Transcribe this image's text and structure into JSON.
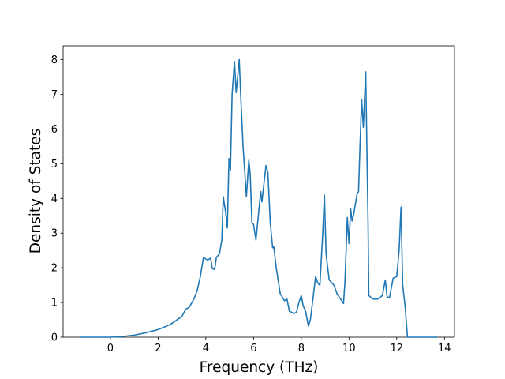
{
  "chart_data": {
    "type": "line",
    "xlabel": "Frequency (THz)",
    "ylabel": "Density of States",
    "color": "#1f77b4",
    "x": [
      -1.25,
      0,
      0.5,
      1.0,
      1.5,
      2.0,
      2.5,
      3.0,
      3.15,
      3.3,
      3.5,
      3.64,
      3.77,
      3.9,
      4.07,
      4.2,
      4.27,
      4.37,
      4.44,
      4.57,
      4.67,
      4.73,
      4.83,
      4.9,
      4.97,
      5.03,
      5.1,
      5.2,
      5.27,
      5.4,
      5.46,
      5.56,
      5.7,
      5.8,
      5.86,
      5.93,
      6.0,
      6.1,
      6.3,
      6.35,
      6.52,
      6.6,
      6.7,
      6.8,
      6.85,
      6.95,
      7.12,
      7.3,
      7.4,
      7.5,
      7.7,
      7.8,
      7.9,
      8.0,
      8.08,
      8.18,
      8.25,
      8.3,
      8.38,
      8.48,
      8.6,
      8.7,
      8.78,
      8.9,
      8.97,
      9.04,
      9.17,
      9.37,
      9.5,
      9.77,
      9.83,
      9.93,
      10.0,
      10.07,
      10.13,
      10.2,
      10.33,
      10.4,
      10.46,
      10.53,
      10.6,
      10.7,
      10.8,
      10.83,
      11.0,
      11.2,
      11.4,
      11.52,
      11.6,
      11.7,
      11.85,
      12.0,
      12.1,
      12.18,
      12.25,
      12.35,
      12.45,
      13.7
    ],
    "values": [
      0,
      0,
      0.02,
      0.06,
      0.13,
      0.22,
      0.36,
      0.6,
      0.8,
      0.86,
      1.1,
      1.35,
      1.75,
      2.3,
      2.22,
      2.28,
      1.98,
      1.95,
      2.3,
      2.4,
      2.8,
      4.05,
      3.6,
      3.15,
      5.15,
      4.8,
      7.0,
      7.95,
      7.05,
      8.0,
      7.0,
      5.5,
      4.05,
      5.1,
      4.7,
      3.3,
      3.25,
      2.8,
      4.2,
      3.9,
      4.95,
      4.75,
      3.3,
      2.58,
      2.6,
      2.0,
      1.25,
      1.05,
      1.1,
      0.75,
      0.68,
      0.72,
      1.0,
      1.2,
      0.9,
      0.75,
      0.5,
      0.32,
      0.5,
      1.05,
      1.75,
      1.55,
      1.5,
      3.0,
      4.1,
      2.4,
      1.65,
      1.5,
      1.25,
      0.97,
      1.6,
      3.45,
      2.7,
      3.7,
      3.35,
      3.55,
      4.1,
      4.2,
      5.5,
      6.85,
      6.05,
      7.65,
      3.2,
      1.2,
      1.1,
      1.1,
      1.2,
      1.65,
      1.15,
      1.15,
      1.7,
      1.75,
      2.5,
      3.75,
      1.5,
      0.9,
      0,
      0
    ],
    "xlim": [
      -1.98,
      14.42
    ],
    "ylim": [
      0,
      8.4
    ],
    "xticks": [
      0,
      2,
      4,
      6,
      8,
      10,
      12,
      14
    ],
    "yticks": [
      0,
      1,
      2,
      3,
      4,
      5,
      6,
      7,
      8
    ]
  }
}
